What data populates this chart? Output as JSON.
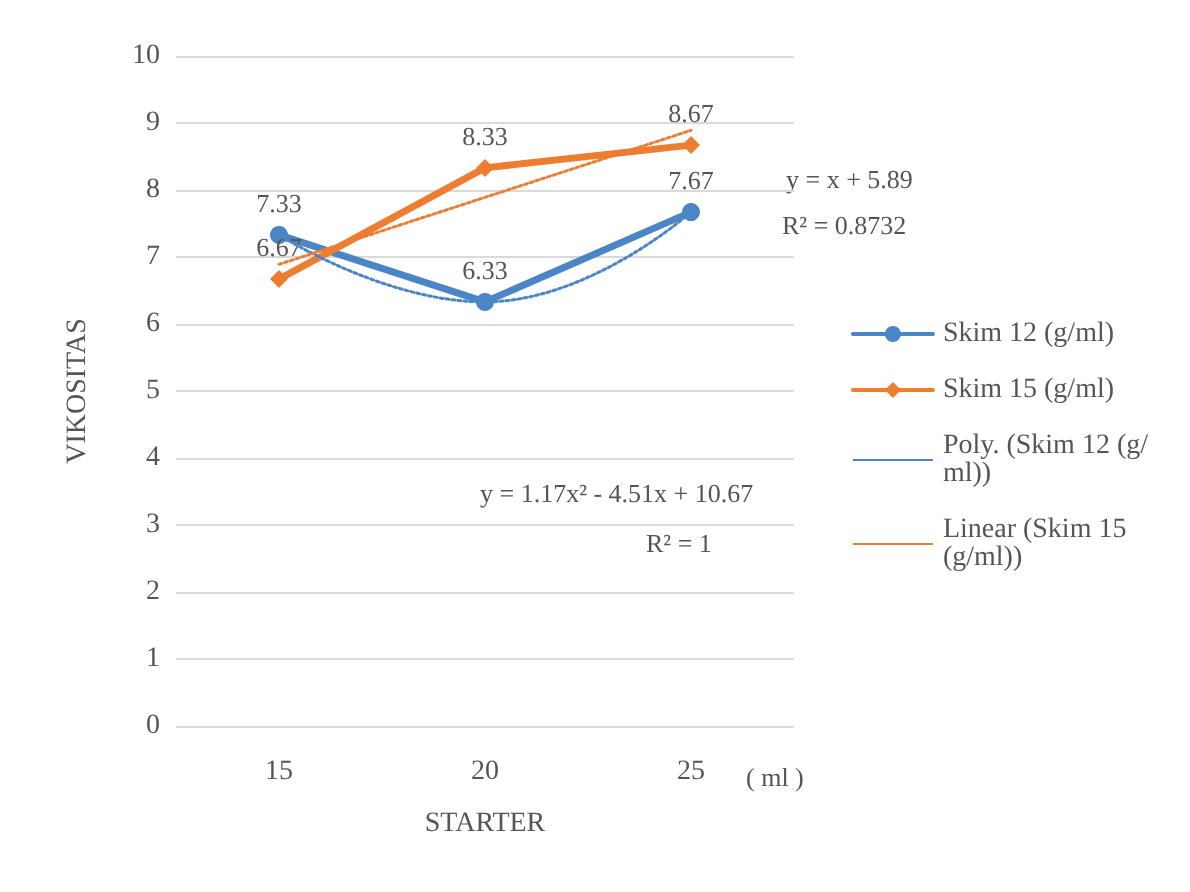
{
  "chart_data": {
    "type": "line",
    "xlabel": "STARTER",
    "ylabel": "VIKOSITAS",
    "categories": [
      "15",
      "20",
      "25"
    ],
    "series": [
      {
        "name": "Skim 12 (g/ml)",
        "color": "#4a86c5",
        "values": [
          7.33,
          6.33,
          7.67
        ],
        "marker": "circle",
        "value_labels": [
          "7.33",
          "6.33",
          "7.67"
        ]
      },
      {
        "name": "Skim 15 (g/ml)",
        "color": "#ed7d31",
        "values": [
          6.67,
          8.33,
          8.67
        ],
        "marker": "diamond",
        "value_labels": [
          "6.67",
          "8.33",
          "8.67"
        ]
      },
      {
        "name": "Poly. (Skim 12 (g/ml))",
        "color": "#4a86c5",
        "values": [
          7.33,
          6.33,
          7.67
        ],
        "marker": "none",
        "line_style": "dotted"
      },
      {
        "name": "Linear (Skim 15  (g/ml))",
        "color": "#ed7d31",
        "values": [
          6.89,
          7.89,
          8.89
        ],
        "marker": "none",
        "line_style": "dotted"
      }
    ],
    "ylim": [
      0,
      10
    ],
    "yticks": [
      0,
      1,
      2,
      3,
      4,
      5,
      6,
      7,
      8,
      9,
      10
    ],
    "grid": "y",
    "legend": "right",
    "annotations": [
      "y = x + 5.89",
      "R² = 0.8732",
      "y = 1.17x² - 4.51x + 10.67",
      "R² = 1",
      "( ml )"
    ]
  }
}
